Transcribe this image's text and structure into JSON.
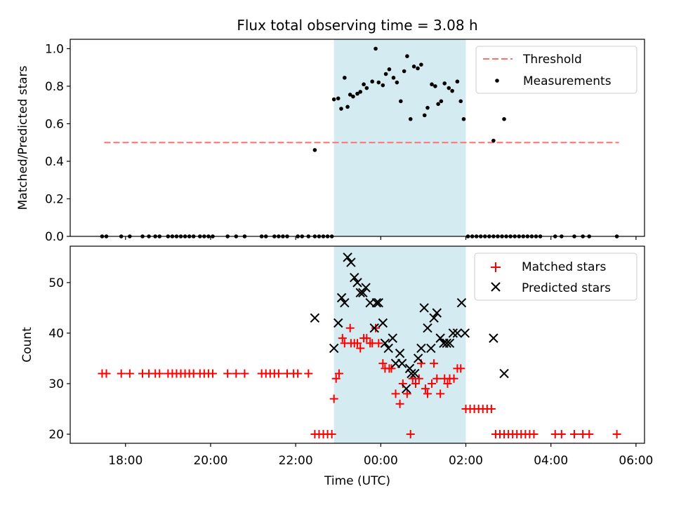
{
  "title": "Flux total observing time = 3.08 h",
  "colors": {
    "shade": "#add8e6",
    "threshold": "#ff7070",
    "measurement": "#000000",
    "matched": "#ff0000",
    "predicted": "#000000"
  },
  "chart_data": [
    {
      "type": "scatter",
      "panel": "top",
      "title": "Flux total observing time = 3.08 h",
      "xlabel": "",
      "ylabel": "Matched/Predicted stars",
      "xlim": [
        -7.3,
        6.2
      ],
      "ylim": [
        0,
        1.05
      ],
      "xticks": [
        -6,
        -4,
        -2,
        0,
        2,
        4,
        6
      ],
      "yticks": [
        "0.0",
        "0.2",
        "0.4",
        "0.6",
        "0.8",
        "1.0"
      ],
      "ytick_values": [
        0,
        0.2,
        0.4,
        0.6,
        0.8,
        1.0
      ],
      "shaded_span": [
        -1.1,
        2.0
      ],
      "legend": {
        "placement": "upper right",
        "entries": [
          "Threshold",
          "Measurements"
        ]
      },
      "threshold": {
        "name": "Threshold",
        "y": 0.5,
        "x": [
          -6.5,
          5.6
        ],
        "style": "dashed"
      },
      "series": [
        {
          "name": "Measurements",
          "points": [
            [
              -6.55,
              0
            ],
            [
              -6.45,
              0
            ],
            [
              -6.1,
              0
            ],
            [
              -5.9,
              0
            ],
            [
              -5.6,
              0
            ],
            [
              -5.45,
              0
            ],
            [
              -5.3,
              0
            ],
            [
              -5.2,
              0
            ],
            [
              -5.0,
              0
            ],
            [
              -4.9,
              0
            ],
            [
              -4.8,
              0
            ],
            [
              -4.7,
              0
            ],
            [
              -4.6,
              0
            ],
            [
              -4.5,
              0
            ],
            [
              -4.4,
              0
            ],
            [
              -4.25,
              0
            ],
            [
              -4.15,
              0
            ],
            [
              -4.05,
              0
            ],
            [
              -3.95,
              0
            ],
            [
              -3.6,
              0
            ],
            [
              -3.4,
              0
            ],
            [
              -3.2,
              0
            ],
            [
              -2.8,
              0
            ],
            [
              -2.7,
              0
            ],
            [
              -2.5,
              0
            ],
            [
              -2.4,
              0
            ],
            [
              -2.3,
              0
            ],
            [
              -2.2,
              0
            ],
            [
              -1.95,
              0
            ],
            [
              -1.85,
              0
            ],
            [
              -1.7,
              0
            ],
            [
              -1.55,
              0
            ],
            [
              -1.45,
              0
            ],
            [
              -1.35,
              0
            ],
            [
              -1.25,
              0
            ],
            [
              -1.15,
              0
            ],
            [
              -1.55,
              0.46
            ],
            [
              -1.1,
              0.73
            ],
            [
              -1.0,
              0.735
            ],
            [
              -0.93,
              0.68
            ],
            [
              -0.85,
              0.845
            ],
            [
              -0.78,
              0.69
            ],
            [
              -0.72,
              0.755
            ],
            [
              -0.65,
              0.745
            ],
            [
              -0.55,
              0.76
            ],
            [
              -0.48,
              0.77
            ],
            [
              -0.4,
              0.81
            ],
            [
              -0.33,
              0.79
            ],
            [
              -0.2,
              0.825
            ],
            [
              -0.12,
              1.0
            ],
            [
              -0.05,
              0.82
            ],
            [
              0.05,
              0.805
            ],
            [
              0.12,
              0.865
            ],
            [
              0.2,
              0.89
            ],
            [
              0.3,
              0.845
            ],
            [
              0.38,
              0.82
            ],
            [
              0.47,
              0.72
            ],
            [
              0.55,
              0.88
            ],
            [
              0.62,
              0.96
            ],
            [
              0.7,
              0.625
            ],
            [
              0.78,
              0.905
            ],
            [
              0.87,
              0.895
            ],
            [
              0.95,
              0.915
            ],
            [
              1.03,
              0.645
            ],
            [
              1.1,
              0.685
            ],
            [
              1.2,
              0.81
            ],
            [
              1.28,
              0.8
            ],
            [
              1.35,
              0.705
            ],
            [
              1.42,
              0.72
            ],
            [
              1.5,
              0.815
            ],
            [
              1.6,
              0.79
            ],
            [
              1.68,
              0.775
            ],
            [
              1.8,
              0.825
            ],
            [
              1.88,
              0.72
            ],
            [
              1.95,
              0.625
            ],
            [
              2.05,
              0
            ],
            [
              2.15,
              0
            ],
            [
              2.25,
              0
            ],
            [
              2.35,
              0
            ],
            [
              2.45,
              0
            ],
            [
              2.55,
              0
            ],
            [
              2.65,
              0
            ],
            [
              2.75,
              0
            ],
            [
              2.85,
              0
            ],
            [
              2.95,
              0
            ],
            [
              3.05,
              0
            ],
            [
              3.15,
              0
            ],
            [
              3.25,
              0
            ],
            [
              3.35,
              0
            ],
            [
              3.45,
              0
            ],
            [
              3.55,
              0
            ],
            [
              3.65,
              0
            ],
            [
              3.75,
              0
            ],
            [
              2.65,
              0.51
            ],
            [
              2.9,
              0.625
            ],
            [
              4.1,
              0
            ],
            [
              4.25,
              0
            ],
            [
              4.55,
              0
            ],
            [
              4.75,
              0
            ],
            [
              4.9,
              0
            ],
            [
              5.55,
              0
            ]
          ]
        }
      ]
    },
    {
      "type": "scatter",
      "panel": "bottom",
      "title": "",
      "xlabel": "Time (UTC)",
      "ylabel": "Count",
      "xlim": [
        -7.3,
        6.2
      ],
      "ylim": [
        18.2,
        57.2
      ],
      "xticks": [
        -6,
        -4,
        -2,
        0,
        2,
        4,
        6
      ],
      "xticklabels": [
        "18:00",
        "20:00",
        "22:00",
        "00:00",
        "02:00",
        "04:00",
        "06:00"
      ],
      "yticks": [
        "20",
        "30",
        "40",
        "50"
      ],
      "ytick_values": [
        20,
        30,
        40,
        50
      ],
      "shaded_span": [
        -1.1,
        2.0
      ],
      "legend": {
        "placement": "upper right",
        "entries": [
          "Matched stars",
          "Predicted stars"
        ]
      },
      "series": [
        {
          "name": "Matched stars",
          "marker": "plus",
          "points": [
            [
              -6.55,
              32
            ],
            [
              -6.45,
              32
            ],
            [
              -6.1,
              32
            ],
            [
              -5.9,
              32
            ],
            [
              -5.6,
              32
            ],
            [
              -5.45,
              32
            ],
            [
              -5.3,
              32
            ],
            [
              -5.2,
              32
            ],
            [
              -5.0,
              32
            ],
            [
              -4.9,
              32
            ],
            [
              -4.8,
              32
            ],
            [
              -4.7,
              32
            ],
            [
              -4.6,
              32
            ],
            [
              -4.5,
              32
            ],
            [
              -4.4,
              32
            ],
            [
              -4.25,
              32
            ],
            [
              -4.15,
              32
            ],
            [
              -4.05,
              32
            ],
            [
              -3.95,
              32
            ],
            [
              -3.6,
              32
            ],
            [
              -3.4,
              32
            ],
            [
              -3.2,
              32
            ],
            [
              -2.8,
              32
            ],
            [
              -2.7,
              32
            ],
            [
              -2.6,
              32
            ],
            [
              -2.5,
              32
            ],
            [
              -2.4,
              32
            ],
            [
              -2.2,
              32
            ],
            [
              -2.05,
              32
            ],
            [
              -1.95,
              32
            ],
            [
              -1.7,
              32
            ],
            [
              -1.55,
              20
            ],
            [
              -1.45,
              20
            ],
            [
              -1.35,
              20
            ],
            [
              -1.25,
              20
            ],
            [
              -1.15,
              20
            ],
            [
              -1.1,
              27
            ],
            [
              -1.05,
              31
            ],
            [
              -0.98,
              32
            ],
            [
              -0.9,
              39
            ],
            [
              -0.85,
              38
            ],
            [
              -0.72,
              41
            ],
            [
              -0.7,
              38
            ],
            [
              -0.62,
              38
            ],
            [
              -0.55,
              38
            ],
            [
              -0.48,
              37
            ],
            [
              -0.4,
              39
            ],
            [
              -0.33,
              39
            ],
            [
              -0.25,
              38
            ],
            [
              -0.2,
              38
            ],
            [
              -0.12,
              41
            ],
            [
              -0.05,
              38
            ],
            [
              0.05,
              34
            ],
            [
              0.1,
              33
            ],
            [
              0.2,
              33
            ],
            [
              0.25,
              33
            ],
            [
              0.35,
              28
            ],
            [
              0.45,
              26
            ],
            [
              0.52,
              30
            ],
            [
              0.62,
              28
            ],
            [
              0.7,
              20
            ],
            [
              0.75,
              31
            ],
            [
              0.82,
              30
            ],
            [
              0.9,
              31
            ],
            [
              0.95,
              34
            ],
            [
              1.05,
              29
            ],
            [
              1.1,
              28
            ],
            [
              1.2,
              30
            ],
            [
              1.25,
              34
            ],
            [
              1.32,
              31
            ],
            [
              1.4,
              28
            ],
            [
              1.5,
              31
            ],
            [
              1.57,
              30
            ],
            [
              1.62,
              31
            ],
            [
              1.72,
              31
            ],
            [
              1.8,
              33
            ],
            [
              1.88,
              33
            ],
            [
              2.0,
              25
            ],
            [
              2.1,
              25
            ],
            [
              2.2,
              25
            ],
            [
              2.3,
              25
            ],
            [
              2.4,
              25
            ],
            [
              2.5,
              25
            ],
            [
              2.6,
              25
            ],
            [
              2.7,
              20
            ],
            [
              2.8,
              20
            ],
            [
              2.9,
              20
            ],
            [
              3.0,
              20
            ],
            [
              3.1,
              20
            ],
            [
              3.2,
              20
            ],
            [
              3.3,
              20
            ],
            [
              3.4,
              20
            ],
            [
              3.5,
              20
            ],
            [
              3.6,
              20
            ],
            [
              4.1,
              20
            ],
            [
              4.25,
              20
            ],
            [
              4.55,
              20
            ],
            [
              4.75,
              20
            ],
            [
              4.9,
              20
            ],
            [
              5.55,
              20
            ]
          ]
        },
        {
          "name": "Predicted stars",
          "marker": "x",
          "points": [
            [
              -1.55,
              43
            ],
            [
              -1.1,
              37
            ],
            [
              -1.0,
              42
            ],
            [
              -0.92,
              47
            ],
            [
              -0.85,
              46
            ],
            [
              -0.78,
              55
            ],
            [
              -0.7,
              54
            ],
            [
              -0.62,
              51
            ],
            [
              -0.55,
              50
            ],
            [
              -0.48,
              48
            ],
            [
              -0.42,
              48
            ],
            [
              -0.35,
              49
            ],
            [
              -0.25,
              46
            ],
            [
              -0.15,
              41
            ],
            [
              -0.1,
              46
            ],
            [
              -0.05,
              46
            ],
            [
              0.05,
              42
            ],
            [
              0.1,
              38
            ],
            [
              0.18,
              37
            ],
            [
              0.28,
              39
            ],
            [
              0.35,
              34
            ],
            [
              0.45,
              36
            ],
            [
              0.5,
              34
            ],
            [
              0.6,
              29
            ],
            [
              0.68,
              33
            ],
            [
              0.72,
              32
            ],
            [
              0.8,
              32
            ],
            [
              0.88,
              35
            ],
            [
              0.95,
              37
            ],
            [
              1.02,
              45
            ],
            [
              1.1,
              41
            ],
            [
              1.18,
              37
            ],
            [
              1.25,
              43
            ],
            [
              1.32,
              44
            ],
            [
              1.4,
              39
            ],
            [
              1.48,
              38
            ],
            [
              1.55,
              38
            ],
            [
              1.62,
              38
            ],
            [
              1.7,
              40
            ],
            [
              1.8,
              40
            ],
            [
              1.9,
              46
            ],
            [
              1.98,
              40
            ],
            [
              2.65,
              39
            ],
            [
              2.9,
              32
            ]
          ]
        }
      ]
    }
  ]
}
